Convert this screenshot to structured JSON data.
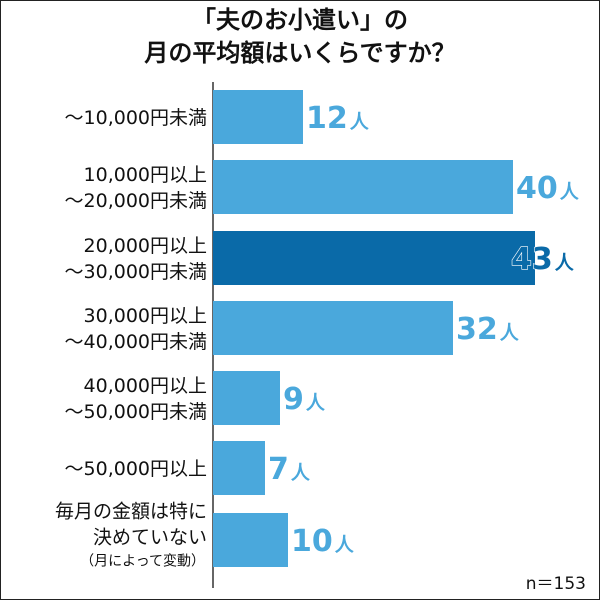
{
  "colors": {
    "bar": "#4aa8dc",
    "highlight_bar": "#0a6aa8",
    "label": "#4aa8dc",
    "highlight_label": "#0a6aa8",
    "axis": "#333333"
  },
  "chart_data": {
    "type": "bar",
    "orientation": "horizontal",
    "title_lines": [
      "「夫のお小遣い」の",
      "月の平均額はいくらですか？"
    ],
    "categories": [
      [
        "〜10,000円未満"
      ],
      [
        "10,000円以上",
        "〜20,000円未満"
      ],
      [
        "20,000円以上",
        "〜30,000円未満"
      ],
      [
        "30,000円以上",
        "〜40,000円未満"
      ],
      [
        "40,000円以上",
        "〜50,000円未満"
      ],
      [
        "〜50,000円以上"
      ],
      [
        "毎月の金額は特に",
        "決めていない"
      ]
    ],
    "category_notes": [
      "",
      "",
      "",
      "",
      "",
      "",
      "（月によって変動）"
    ],
    "values": [
      12,
      40,
      43,
      32,
      9,
      7,
      10
    ],
    "unit": "人",
    "highlight_index": 2,
    "xlim": [
      0,
      43
    ],
    "grid": false,
    "legend": "none",
    "sample_note": "n＝153"
  }
}
